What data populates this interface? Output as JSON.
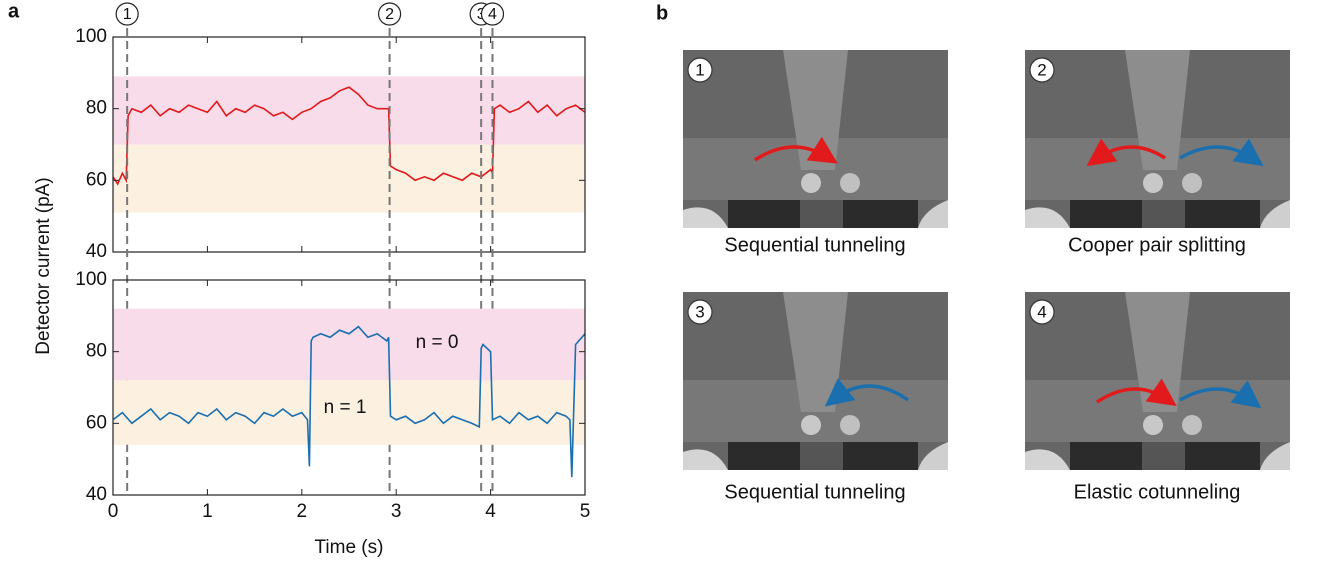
{
  "panel_labels": [
    "a",
    "b"
  ],
  "chart_data": [
    {
      "type": "line",
      "ylabel": "Detector current (pA)",
      "x": [
        0,
        0.05,
        0.1,
        0.14,
        0.16,
        0.2,
        0.3,
        0.4,
        0.5,
        0.6,
        0.7,
        0.8,
        0.9,
        1.0,
        1.1,
        1.2,
        1.3,
        1.4,
        1.5,
        1.6,
        1.7,
        1.8,
        1.9,
        2.0,
        2.1,
        2.2,
        2.3,
        2.4,
        2.5,
        2.6,
        2.7,
        2.8,
        2.92,
        2.94,
        3.0,
        3.1,
        3.2,
        3.3,
        3.4,
        3.5,
        3.6,
        3.7,
        3.8,
        3.9,
        4.0,
        4.02,
        4.04,
        4.1,
        4.2,
        4.3,
        4.4,
        4.5,
        4.6,
        4.7,
        4.8,
        4.9,
        5.0
      ],
      "series": [
        {
          "color": "#e31a1c",
          "values": [
            61,
            59,
            62,
            60,
            78,
            80,
            79,
            81,
            78,
            80,
            79,
            81,
            80,
            79,
            82,
            78,
            80,
            79,
            81,
            80,
            78,
            79,
            77,
            79,
            80,
            82,
            83,
            85,
            86,
            84,
            81,
            80,
            80,
            64,
            63,
            62,
            60,
            61,
            60,
            62,
            61,
            60,
            62,
            61,
            63,
            62,
            80,
            81,
            79,
            80,
            82,
            79,
            81,
            78,
            80,
            81,
            79
          ]
        }
      ],
      "bands": [
        {
          "range": [
            70,
            89
          ],
          "color": "#f9dcea"
        },
        {
          "range": [
            51,
            70
          ],
          "color": "#fcf1e1"
        }
      ],
      "events": [
        {
          "x": 0.15,
          "label": "1"
        },
        {
          "x": 2.93,
          "label": "2"
        },
        {
          "x": 3.9,
          "label": "3"
        },
        {
          "x": 4.02,
          "label": "4"
        }
      ],
      "xlim": [
        0,
        5
      ],
      "ylim": [
        40,
        100
      ],
      "yticks": [
        40,
        60,
        80,
        100
      ]
    },
    {
      "type": "line",
      "xlabel": "Time (s)",
      "x": [
        0,
        0.1,
        0.2,
        0.3,
        0.4,
        0.5,
        0.6,
        0.7,
        0.8,
        0.9,
        1.0,
        1.1,
        1.2,
        1.3,
        1.4,
        1.5,
        1.6,
        1.7,
        1.8,
        1.9,
        2.0,
        2.06,
        2.08,
        2.1,
        2.12,
        2.2,
        2.3,
        2.4,
        2.5,
        2.6,
        2.7,
        2.8,
        2.9,
        2.92,
        2.94,
        3.0,
        3.1,
        3.2,
        3.3,
        3.4,
        3.5,
        3.6,
        3.7,
        3.8,
        3.88,
        3.9,
        3.92,
        4.0,
        4.02,
        4.1,
        4.2,
        4.3,
        4.4,
        4.5,
        4.6,
        4.7,
        4.8,
        4.84,
        4.86,
        4.9,
        5.0
      ],
      "series": [
        {
          "color": "#1a6faf",
          "values": [
            61,
            63,
            60,
            62,
            64,
            61,
            63,
            62,
            60,
            63,
            62,
            64,
            61,
            63,
            62,
            60,
            63,
            62,
            64,
            62,
            63,
            61,
            48,
            83,
            84,
            85,
            84,
            86,
            85,
            87,
            84,
            85,
            83,
            84,
            62,
            61,
            62,
            60,
            61,
            63,
            60,
            62,
            61,
            60,
            59,
            81,
            82,
            80,
            61,
            62,
            60,
            63,
            61,
            62,
            60,
            63,
            62,
            61,
            45,
            82,
            85
          ]
        }
      ],
      "bands": [
        {
          "range": [
            72,
            92
          ],
          "color": "#f9dcea"
        },
        {
          "range": [
            54,
            72
          ],
          "color": "#fcf1e1"
        }
      ],
      "annotations": [
        "n = 0",
        "n = 1"
      ],
      "xlim": [
        0,
        5
      ],
      "xticks": [
        0,
        1,
        2,
        3,
        4,
        5
      ],
      "ylim": [
        40,
        100
      ],
      "yticks": [
        40,
        60,
        80,
        100
      ]
    }
  ],
  "images": [
    {
      "label": "1",
      "caption": "Sequential tunneling"
    },
    {
      "label": "2",
      "caption": "Cooper pair splitting"
    },
    {
      "label": "3",
      "caption": "Sequential tunneling"
    },
    {
      "label": "4",
      "caption": "Elastic cotunneling"
    }
  ]
}
